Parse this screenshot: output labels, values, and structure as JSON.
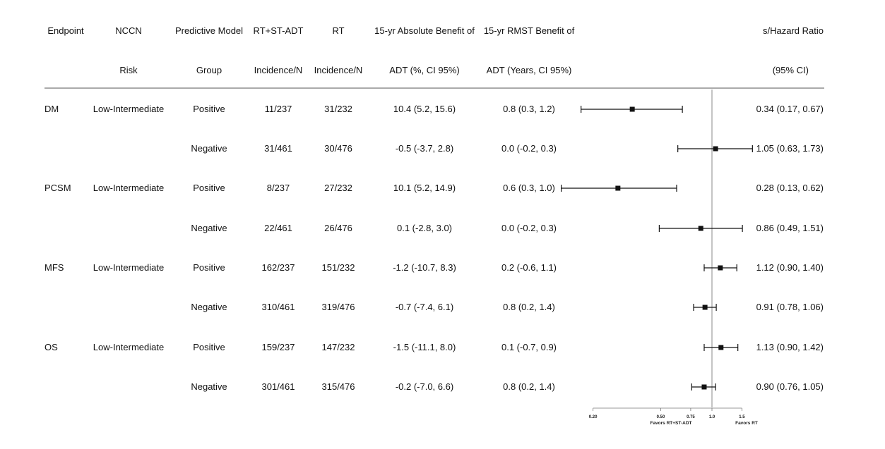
{
  "headers": {
    "row1": {
      "endpoint": "Endpoint",
      "nccn": "NCCN",
      "model": "Predictive Model",
      "rtadt": "RT+ST-ADT",
      "rt": "RT",
      "abs": "15-yr Absolute Benefit of",
      "rmst": "15-yr RMST Benefit of",
      "hr": "s/Hazard Ratio"
    },
    "row2": {
      "nccn": "Risk",
      "model": "Group",
      "rtadt": "Incidence/N",
      "rt": "Incidence/N",
      "abs": "ADT (%, CI 95%)",
      "rmst": "ADT (Years, CI 95%)",
      "hr": "(95% CI)"
    }
  },
  "rows": [
    {
      "endpoint": "DM",
      "nccn": "Low-Intermediate",
      "group": "Positive",
      "rtadt": "11/237",
      "rt": "31/232",
      "abs": "10.4 (5.2, 15.6)",
      "rmst": "0.8 (0.3, 1.2)",
      "hr_text": "0.34 (0.17, 0.67)"
    },
    {
      "endpoint": "",
      "nccn": "",
      "group": "Negative",
      "rtadt": "31/461",
      "rt": "30/476",
      "abs": "-0.5 (-3.7, 2.8)",
      "rmst": "0.0 (-0.2, 0.3)",
      "hr_text": "1.05 (0.63, 1.73)"
    },
    {
      "endpoint": "PCSM",
      "nccn": "Low-Intermediate",
      "group": "Positive",
      "rtadt": "8/237",
      "rt": "27/232",
      "abs": "10.1 (5.2, 14.9)",
      "rmst": "0.6 (0.3, 1.0)",
      "hr_text": "0.28 (0.13, 0.62)"
    },
    {
      "endpoint": "",
      "nccn": "",
      "group": "Negative",
      "rtadt": "22/461",
      "rt": "26/476",
      "abs": "0.1 (-2.8, 3.0)",
      "rmst": "0.0 (-0.2, 0.3)",
      "hr_text": "0.86 (0.49, 1.51)"
    },
    {
      "endpoint": "MFS",
      "nccn": "Low-Intermediate",
      "group": "Positive",
      "rtadt": "162/237",
      "rt": "151/232",
      "abs": "-1.2 (-10.7, 8.3)",
      "rmst": "0.2 (-0.6, 1.1)",
      "hr_text": "1.12 (0.90, 1.40)"
    },
    {
      "endpoint": "",
      "nccn": "",
      "group": "Negative",
      "rtadt": "310/461",
      "rt": "319/476",
      "abs": "-0.7 (-7.4, 6.1)",
      "rmst": "0.8 (0.2, 1.4)",
      "hr_text": "0.91 (0.78, 1.06)"
    },
    {
      "endpoint": "OS",
      "nccn": "Low-Intermediate",
      "group": "Positive",
      "rtadt": "159/237",
      "rt": "147/232",
      "abs": "-1.5 (-11.1, 8.0)",
      "rmst": "0.1 (-0.7, 0.9)",
      "hr_text": "1.13 (0.90, 1.42)"
    },
    {
      "endpoint": "",
      "nccn": "",
      "group": "Negative",
      "rtadt": "301/461",
      "rt": "315/476",
      "abs": "-0.2 (-7.0, 6.6)",
      "rmst": "0.8 (0.2, 1.4)",
      "hr_text": "0.90 (0.76, 1.05)"
    }
  ],
  "chart_data": {
    "type": "forest",
    "scale": "log",
    "reference_line": 1.0,
    "xlim": [
      0.2,
      1.5
    ],
    "ticks": [
      {
        "value": 0.2,
        "label": "0.20"
      },
      {
        "value": 0.5,
        "label": "0.50"
      },
      {
        "value": 0.75,
        "label": "0.75"
      },
      {
        "value": 1.0,
        "label": "1.0"
      },
      {
        "value": 1.5,
        "label": "1.5"
      }
    ],
    "favors_left": "Favors RT+ST-ADT",
    "favors_right": "Favors RT",
    "estimates": [
      {
        "hr": 0.34,
        "lo": 0.17,
        "hi": 0.67
      },
      {
        "hr": 1.05,
        "lo": 0.63,
        "hi": 1.73
      },
      {
        "hr": 0.28,
        "lo": 0.13,
        "hi": 0.62
      },
      {
        "hr": 0.86,
        "lo": 0.49,
        "hi": 1.51
      },
      {
        "hr": 1.12,
        "lo": 0.9,
        "hi": 1.4
      },
      {
        "hr": 0.91,
        "lo": 0.78,
        "hi": 1.06
      },
      {
        "hr": 1.13,
        "lo": 0.9,
        "hi": 1.42
      },
      {
        "hr": 0.9,
        "lo": 0.76,
        "hi": 1.05
      }
    ]
  }
}
